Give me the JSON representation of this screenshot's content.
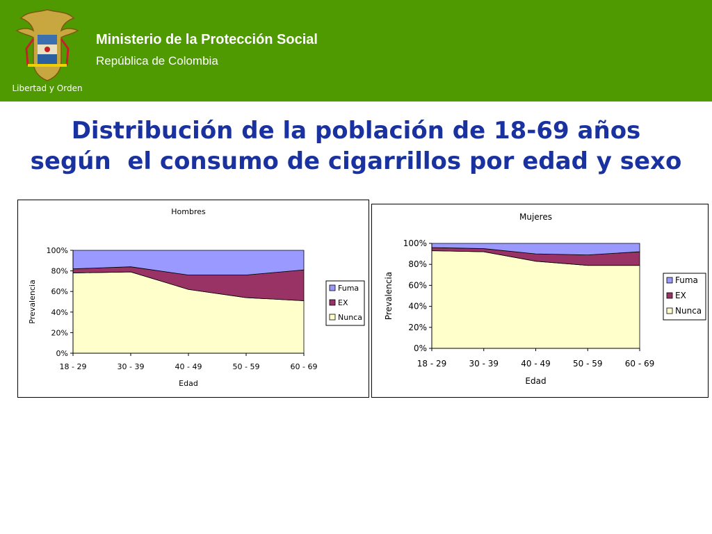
{
  "header": {
    "org": "Ministerio de la Protección Social",
    "country": "República de Colombia",
    "motto": "Libertad y Orden"
  },
  "title": {
    "line1": "Distribución de la población de 18-69 años",
    "line2": "según  el consumo de cigarrillos por edad y sexo"
  },
  "colors": {
    "header_bg": "#4f9a00",
    "title": "#1a32a0",
    "Fuma": "#9999ff",
    "EX": "#993366",
    "Nunca": "#ffffcc"
  },
  "chart_data": [
    {
      "type": "area",
      "stacked": "percent",
      "title": "Hombres",
      "xlabel": "Edad",
      "ylabel": "Prevalencia",
      "categories": [
        "18 - 29",
        "30 - 39",
        "40 - 49",
        "50 - 59",
        "60 - 69"
      ],
      "yticks": [
        "0%",
        "20%",
        "40%",
        "60%",
        "80%",
        "100%"
      ],
      "ylim": [
        0,
        100
      ],
      "legend_position": "right",
      "legend": [
        "Fuma",
        "EX",
        "Nunca"
      ],
      "series": [
        {
          "name": "Nunca",
          "values": [
            78,
            79,
            62,
            54,
            51
          ]
        },
        {
          "name": "EX",
          "values": [
            4,
            5,
            14,
            22,
            30
          ]
        },
        {
          "name": "Fuma",
          "values": [
            18,
            16,
            24,
            24,
            19
          ]
        }
      ]
    },
    {
      "type": "area",
      "stacked": "percent",
      "title": "Mujeres",
      "xlabel": "Edad",
      "ylabel": "Prevalencia",
      "categories": [
        "18 - 29",
        "30 - 39",
        "40 - 49",
        "50 - 59",
        "60 - 69"
      ],
      "yticks": [
        "0%",
        "20%",
        "40%",
        "60%",
        "80%",
        "100%"
      ],
      "ylim": [
        0,
        100
      ],
      "legend_position": "right",
      "legend": [
        "Fuma",
        "EX",
        "Nunca"
      ],
      "series": [
        {
          "name": "Nunca",
          "values": [
            93,
            92,
            83,
            79,
            79
          ]
        },
        {
          "name": "EX",
          "values": [
            3,
            3,
            7,
            10,
            13
          ]
        },
        {
          "name": "Fuma",
          "values": [
            4,
            5,
            10,
            11,
            8
          ]
        }
      ]
    }
  ]
}
